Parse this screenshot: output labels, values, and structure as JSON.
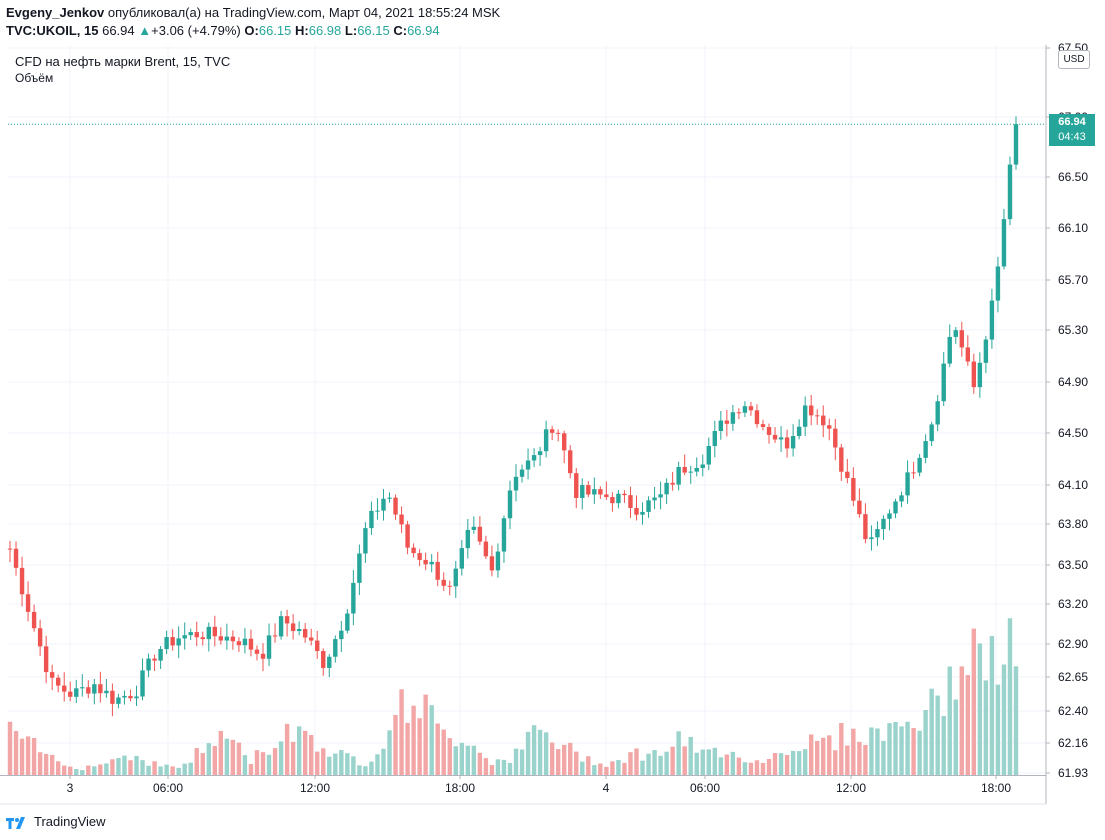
{
  "header": {
    "user": "Evgeny_Jenkov",
    "published": "опубликовал(а) на TradingView.com, Март 04, 2021 18:55:24 MSK",
    "symbol": "TVC:UKOIL, 15",
    "last": "66.94",
    "change_arrow": "▲",
    "change": "+3.06 (+4.79%)",
    "o_label": "O:",
    "o_value": "66.15",
    "h_label": "H:",
    "h_value": "66.98",
    "l_label": "L:",
    "l_value": "66.15",
    "c_label": "C:",
    "c_value": "66.94"
  },
  "legend": {
    "instrument": "CFD на нефть марки Brent, 15, TVC",
    "volume": "Объём"
  },
  "currency_button": "USD",
  "price_tag": {
    "price": "66.94",
    "countdown": "04:43"
  },
  "footer": {
    "brand": "TradingView",
    "logo_icon": "tradingview-logo-icon"
  },
  "colors": {
    "up": "#26a69a",
    "down": "#ef5350",
    "vol_up": "#9ad3cc",
    "vol_down": "#f3a6a6"
  },
  "chart_data": {
    "type": "candlestick",
    "x_tick_labels": [
      "3",
      "06:00",
      "12:00",
      "18:00",
      "4",
      "06:00",
      "12:00",
      "18:00"
    ],
    "y_tick_labels": [
      "67.50",
      "67.00",
      "66.50",
      "66.10",
      "65.70",
      "65.30",
      "64.90",
      "64.50",
      "64.10",
      "63.80",
      "63.50",
      "63.20",
      "62.90",
      "62.65",
      "62.40",
      "62.16",
      "61.93"
    ],
    "y_range": [
      61.93,
      67.5
    ],
    "grid": true,
    "last_price": 66.94,
    "series": [
      {
        "name": "CFD на нефть марки Brent, 15, TVC",
        "kind": "ohlc",
        "note": "candles follow the path shown",
        "path": [
          63.62,
          63.1,
          62.6,
          62.52,
          62.6,
          62.48,
          62.55,
          62.85,
          62.95,
          62.98,
          62.96,
          62.93,
          62.82,
          63.08,
          62.98,
          62.75,
          63.12,
          63.78,
          64.05,
          63.62,
          63.52,
          63.3,
          63.78,
          63.45,
          64.18,
          64.3,
          64.6,
          64.05,
          64.02,
          64.0,
          63.92,
          64.0,
          64.22,
          64.3,
          64.58,
          64.75,
          64.55,
          64.4,
          64.72,
          64.58,
          64.1,
          63.62,
          63.92,
          64.2,
          64.6,
          65.38,
          64.85,
          65.6,
          66.94
        ]
      },
      {
        "name": "Объём",
        "kind": "volume",
        "profile": [
          0.3,
          0.2,
          0.1,
          0.05,
          0.09,
          0.15,
          0.08,
          0.05,
          0.17,
          0.3,
          0.1,
          0.22,
          0.36,
          0.2,
          0.13,
          0.08,
          0.41,
          0.58,
          0.27,
          0.28,
          0.1,
          0.12,
          0.32,
          0.21,
          0.12,
          0.08,
          0.15,
          0.15,
          0.25,
          0.14,
          0.2,
          0.08,
          0.15,
          0.23,
          0.23,
          0.3,
          0.28,
          0.35,
          0.4,
          0.55,
          0.9,
          0.75,
          1.0
        ]
      }
    ]
  }
}
